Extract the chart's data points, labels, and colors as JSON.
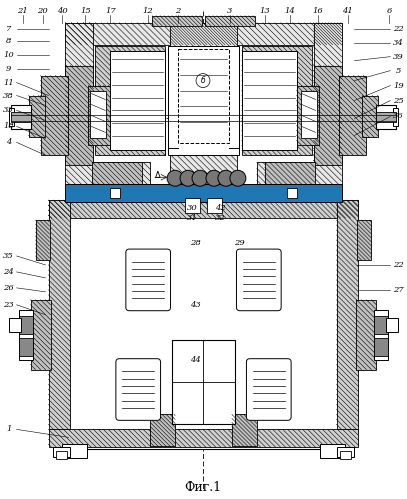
{
  "title": "Фиг.1",
  "bg_color": "#ffffff",
  "lc": "#000000",
  "fig_width": 4.07,
  "fig_height": 4.99,
  "dpi": 100
}
